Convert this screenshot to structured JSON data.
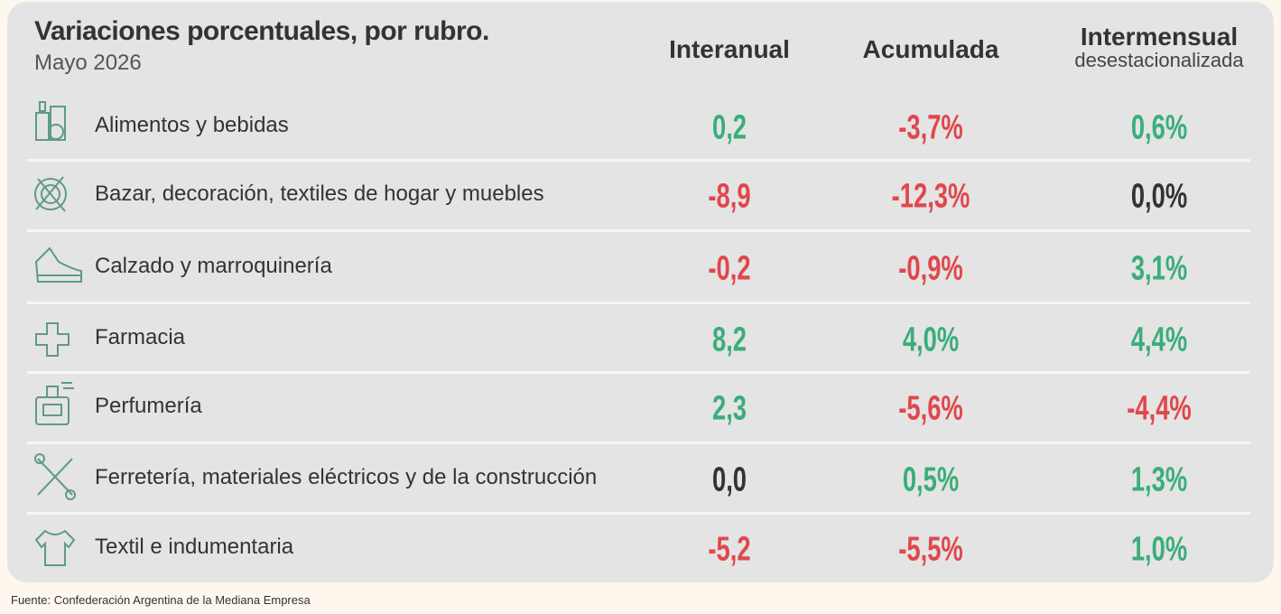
{
  "header": {
    "title": "Variaciones porcentuales, por rubro.",
    "subtitle": "Mayo 2026"
  },
  "columns": [
    {
      "title": "Interanual"
    },
    {
      "title": "Acumulada"
    },
    {
      "title": "Intermensual",
      "subtitle": "desestacionalizada"
    }
  ],
  "rows": [
    {
      "label": "Alimentos y bebidas",
      "cells": [
        {
          "text": "0,2",
          "color": "#3aae7a"
        },
        {
          "text": "-3,7%",
          "color": "#e0474c"
        },
        {
          "text": "0,6%",
          "color": "#3aae7a"
        }
      ]
    },
    {
      "label": "Bazar, decoración, textiles de hogar y muebles",
      "cells": [
        {
          "text": "-8,9",
          "color": "#e0474c"
        },
        {
          "text": "-12,3%",
          "color": "#e0474c"
        },
        {
          "text": "0,0%",
          "color": "#333333"
        }
      ]
    },
    {
      "label": "Calzado y marroquinería",
      "cells": [
        {
          "text": "-0,2",
          "color": "#e0474c"
        },
        {
          "text": "-0,9%",
          "color": "#e0474c"
        },
        {
          "text": "3,1%",
          "color": "#3aae7a"
        }
      ]
    },
    {
      "label": "Farmacia",
      "cells": [
        {
          "text": "8,2",
          "color": "#3aae7a"
        },
        {
          "text": "4,0%",
          "color": "#3aae7a"
        },
        {
          "text": "4,4%",
          "color": "#3aae7a"
        }
      ]
    },
    {
      "label": "Perfumería",
      "cells": [
        {
          "text": "2,3",
          "color": "#3aae7a"
        },
        {
          "text": "-5,6%",
          "color": "#e0474c"
        },
        {
          "text": "-4,4%",
          "color": "#e0474c"
        }
      ]
    },
    {
      "label": "Ferretería, materiales eléctricos y de la construcción",
      "cells": [
        {
          "text": "0,0",
          "color": "#333333"
        },
        {
          "text": "0,5%",
          "color": "#3aae7a"
        },
        {
          "text": "1,3%",
          "color": "#3aae7a"
        }
      ]
    },
    {
      "label": "Textil e indumentaria",
      "cells": [
        {
          "text": "-5,2",
          "color": "#e0474c"
        },
        {
          "text": "-5,5%",
          "color": "#e0474c"
        },
        {
          "text": "1,0%",
          "color": "#3aae7a"
        }
      ]
    }
  ],
  "footer": {
    "source": "Fuente: Confederación Argentina de la Mediana Empresa"
  }
}
